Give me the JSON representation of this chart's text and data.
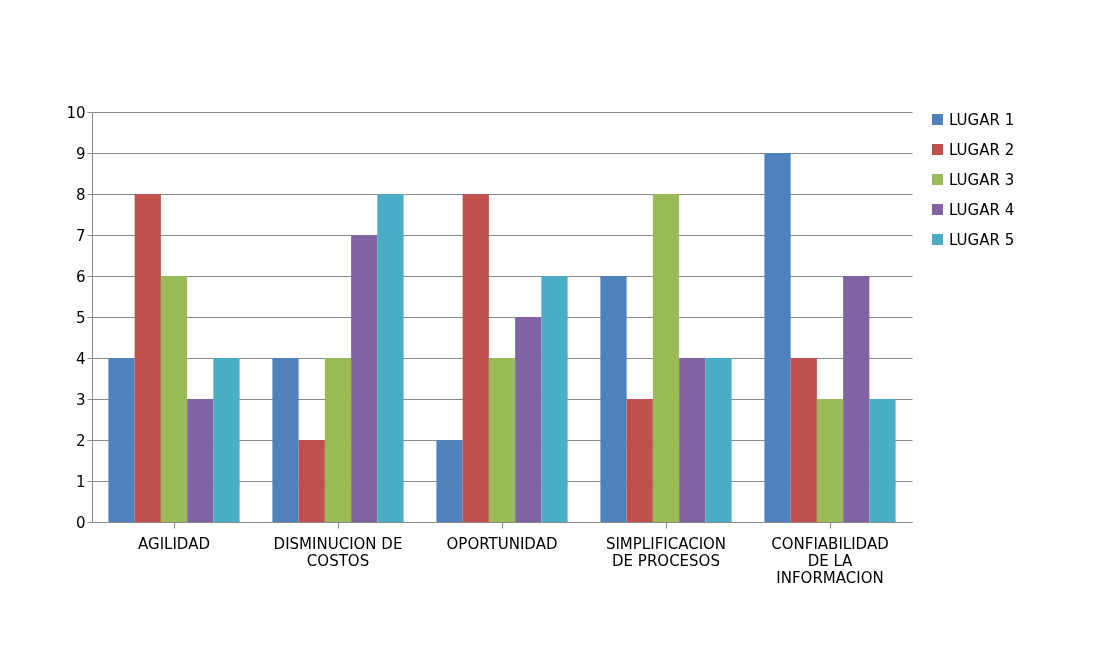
{
  "chart_data": {
    "type": "bar",
    "categories": [
      "AGILIDAD",
      "DISMINUCION DE COSTOS",
      "OPORTUNIDAD",
      "SIMPLIFICACION DE PROCESOS",
      "CONFIABILIDAD DE LA INFORMACION"
    ],
    "series": [
      {
        "name": "LUGAR 1",
        "color": "#4f81bd",
        "values": [
          4,
          4,
          2,
          6,
          9
        ]
      },
      {
        "name": "LUGAR 2",
        "color": "#c0504d",
        "values": [
          8,
          2,
          8,
          3,
          4
        ]
      },
      {
        "name": "LUGAR 3",
        "color": "#9bbb59",
        "values": [
          6,
          4,
          4,
          8,
          3
        ]
      },
      {
        "name": "LUGAR 4",
        "color": "#8064a2",
        "values": [
          3,
          7,
          5,
          4,
          6
        ]
      },
      {
        "name": "LUGAR 5",
        "color": "#4bacc6",
        "values": [
          4,
          8,
          6,
          4,
          3
        ]
      }
    ],
    "ylim": [
      0,
      10
    ],
    "yticks": [
      0,
      1,
      2,
      3,
      4,
      5,
      6,
      7,
      8,
      9,
      10
    ],
    "grid": "y",
    "legend": "right"
  }
}
